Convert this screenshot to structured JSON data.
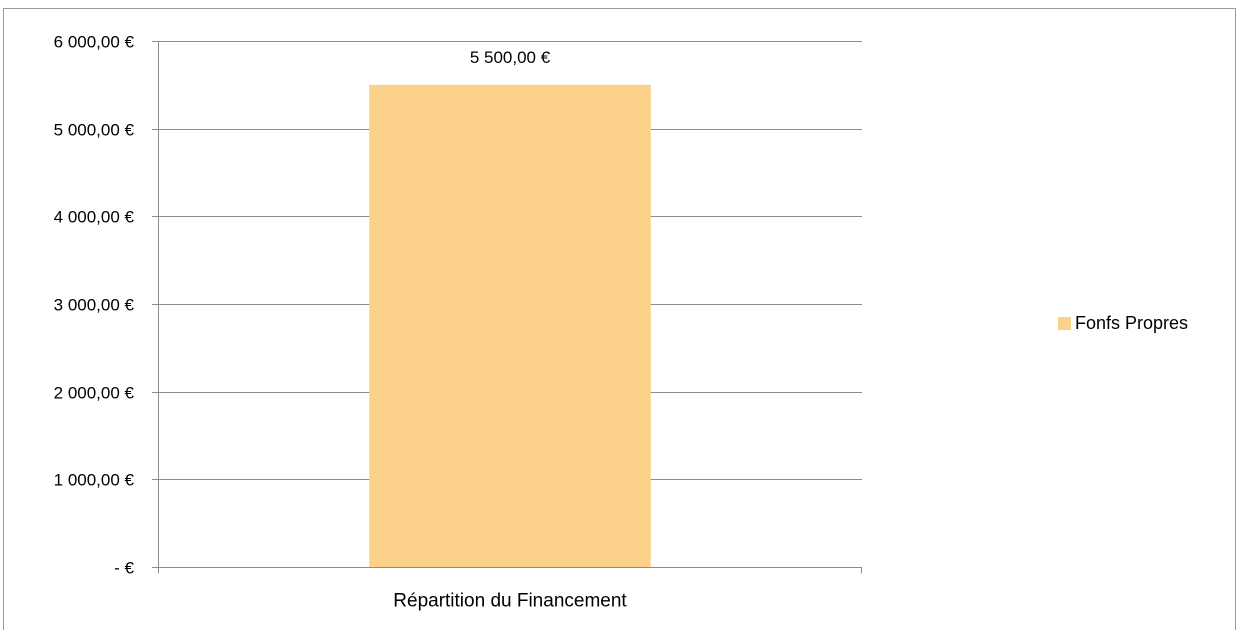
{
  "chart_data": {
    "type": "bar",
    "categories": [
      "Répartition du Financement"
    ],
    "series": [
      {
        "name": "Fonfs Propres",
        "values": [
          5500
        ],
        "color": "#FCD18A",
        "value_label": "5 500,00 €"
      }
    ],
    "title": "",
    "xlabel": "",
    "ylabel": "",
    "ylim": [
      0,
      6000
    ],
    "yticks": [
      0,
      1000,
      2000,
      3000,
      4000,
      5000,
      6000
    ],
    "ytick_labels": [
      "-   €",
      "1 000,00 €",
      "2 000,00 €",
      "3 000,00 €",
      "4 000,00 €",
      "5 000,00 €",
      "6 000,00 €"
    ],
    "grid": true,
    "legend_position": "right"
  }
}
